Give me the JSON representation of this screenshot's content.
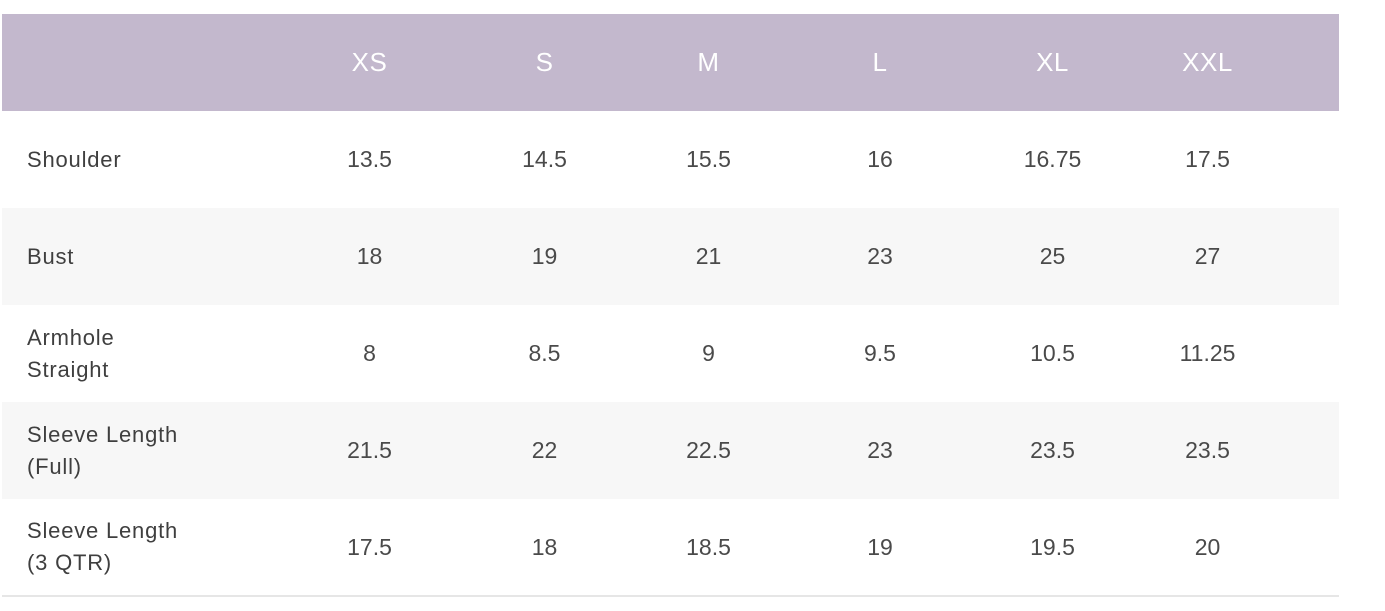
{
  "colors": {
    "header_bg": "#c3b8cd",
    "header_text": "#ffffff",
    "stripe_bg": "#f7f7f7",
    "cell_text": "#4a4a4a"
  },
  "table": {
    "headers": [
      "",
      "XS",
      "S",
      "M",
      "L",
      "XL",
      "XXL"
    ],
    "rows": [
      {
        "label_lines": [
          "Shoulder"
        ],
        "values": [
          "13.5",
          "14.5",
          "15.5",
          "16",
          "16.75",
          "17.5"
        ]
      },
      {
        "label_lines": [
          "Bust"
        ],
        "values": [
          "18",
          "19",
          "21",
          "23",
          "25",
          "27"
        ]
      },
      {
        "label_lines": [
          "Armhole",
          "Straight"
        ],
        "values": [
          "8",
          "8.5",
          "9",
          "9.5",
          "10.5",
          "11.25"
        ]
      },
      {
        "label_lines": [
          "Sleeve Length",
          "(Full)"
        ],
        "values": [
          "21.5",
          "22",
          "22.5",
          "23",
          "23.5",
          "23.5"
        ]
      },
      {
        "label_lines": [
          "Sleeve Length",
          "(3 QTR)"
        ],
        "values": [
          "17.5",
          "18",
          "18.5",
          "19",
          "19.5",
          "20"
        ]
      }
    ]
  }
}
